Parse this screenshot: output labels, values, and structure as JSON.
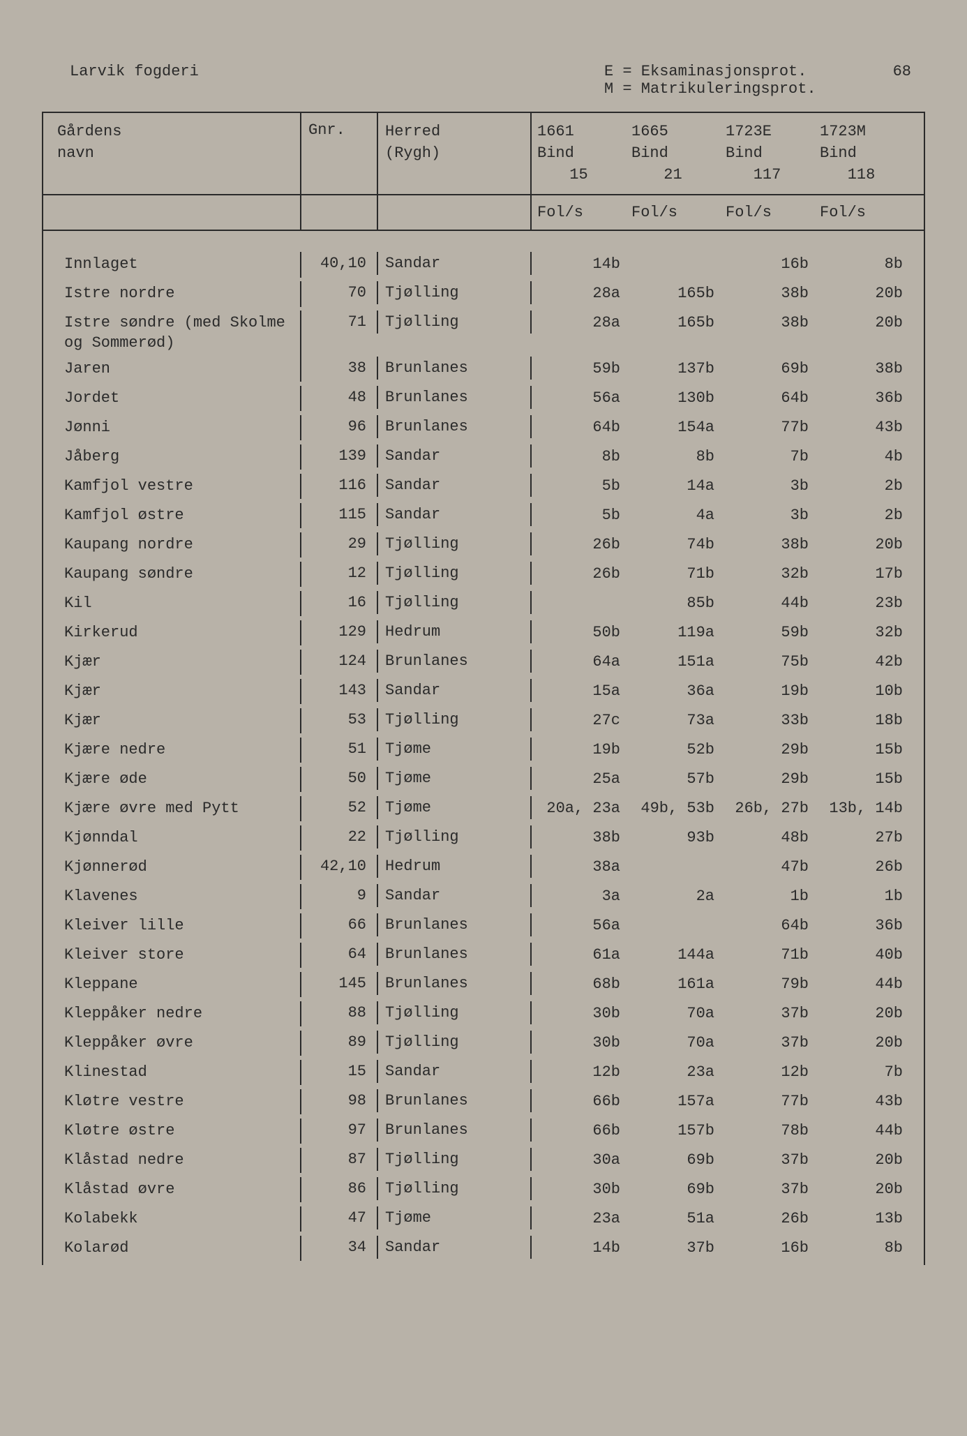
{
  "page_number": "68",
  "district": "Larvik fogderi",
  "legend": {
    "e": "E = Eksaminasjonsprot.",
    "m": "M = Matrikuleringsprot."
  },
  "headers": {
    "name_l1": "Gårdens",
    "name_l2": "navn",
    "gnr": "Gnr.",
    "herred_l1": "Herred",
    "herred_l2": "(Rygh)",
    "y1_l1": "1661",
    "y1_l2": "Bind",
    "y1_l3": "15",
    "y2_l1": "1665",
    "y2_l2": "Bind",
    "y2_l3": "21",
    "y3_l1": "1723E",
    "y3_l2": "Bind",
    "y3_l3": "117",
    "y4_l1": "1723M",
    "y4_l2": "Bind",
    "y4_l3": "118",
    "fols": "Fol/s"
  },
  "rows": [
    {
      "name": "Innlaget",
      "gnr": "40,10",
      "herred": "Sandar",
      "y1": "14b",
      "y2": "",
      "y3": "16b",
      "y4": "8b"
    },
    {
      "name": "Istre nordre",
      "gnr": "70",
      "herred": "Tjølling",
      "y1": "28a",
      "y2": "165b",
      "y3": "38b",
      "y4": "20b"
    },
    {
      "name": "Istre søndre (med Skolme og Sommerød)",
      "gnr": "71",
      "herred": "Tjølling",
      "y1": "28a",
      "y2": "165b",
      "y3": "38b",
      "y4": "20b"
    },
    {
      "name": "Jaren",
      "gnr": "38",
      "herred": "Brunlanes",
      "y1": "59b",
      "y2": "137b",
      "y3": "69b",
      "y4": "38b"
    },
    {
      "name": "Jordet",
      "gnr": "48",
      "herred": "Brunlanes",
      "y1": "56a",
      "y2": "130b",
      "y3": "64b",
      "y4": "36b"
    },
    {
      "name": "Jønni",
      "gnr": "96",
      "herred": "Brunlanes",
      "y1": "64b",
      "y2": "154a",
      "y3": "77b",
      "y4": "43b"
    },
    {
      "name": "Jåberg",
      "gnr": "139",
      "herred": "Sandar",
      "y1": "8b",
      "y2": "8b",
      "y3": "7b",
      "y4": "4b"
    },
    {
      "name": "Kamfjol vestre",
      "gnr": "116",
      "herred": "Sandar",
      "y1": "5b",
      "y2": "14a",
      "y3": "3b",
      "y4": "2b"
    },
    {
      "name": "Kamfjol østre",
      "gnr": "115",
      "herred": "Sandar",
      "y1": "5b",
      "y2": "4a",
      "y3": "3b",
      "y4": "2b"
    },
    {
      "name": "Kaupang nordre",
      "gnr": "29",
      "herred": "Tjølling",
      "y1": "26b",
      "y2": "74b",
      "y3": "38b",
      "y4": "20b"
    },
    {
      "name": "Kaupang søndre",
      "gnr": "12",
      "herred": "Tjølling",
      "y1": "26b",
      "y2": "71b",
      "y3": "32b",
      "y4": "17b"
    },
    {
      "name": "Kil",
      "gnr": "16",
      "herred": "Tjølling",
      "y1": "",
      "y2": "85b",
      "y3": "44b",
      "y4": "23b"
    },
    {
      "name": "Kirkerud",
      "gnr": "129",
      "herred": "Hedrum",
      "y1": "50b",
      "y2": "119a",
      "y3": "59b",
      "y4": "32b"
    },
    {
      "name": "Kjær",
      "gnr": "124",
      "herred": "Brunlanes",
      "y1": "64a",
      "y2": "151a",
      "y3": "75b",
      "y4": "42b"
    },
    {
      "name": "Kjær",
      "gnr": "143",
      "herred": "Sandar",
      "y1": "15a",
      "y2": "36a",
      "y3": "19b",
      "y4": "10b"
    },
    {
      "name": "Kjær",
      "gnr": "53",
      "herred": "Tjølling",
      "y1": "27c",
      "y2": "73a",
      "y3": "33b",
      "y4": "18b"
    },
    {
      "name": "Kjære nedre",
      "gnr": "51",
      "herred": "Tjøme",
      "y1": "19b",
      "y2": "52b",
      "y3": "29b",
      "y4": "15b"
    },
    {
      "name": "Kjære øde",
      "gnr": "50",
      "herred": "Tjøme",
      "y1": "25a",
      "y2": "57b",
      "y3": "29b",
      "y4": "15b"
    },
    {
      "name": "Kjære øvre med Pytt",
      "gnr": "52",
      "herred": "Tjøme",
      "y1": "20a, 23a",
      "y2": "49b, 53b",
      "y3": "26b, 27b",
      "y4": "13b, 14b"
    },
    {
      "name": "Kjønndal",
      "gnr": "22",
      "herred": "Tjølling",
      "y1": "38b",
      "y2": "93b",
      "y3": "48b",
      "y4": "27b"
    },
    {
      "name": "Kjønnerød",
      "gnr": "42,10",
      "herred": "Hedrum",
      "y1": "38a",
      "y2": "",
      "y3": "47b",
      "y4": "26b"
    },
    {
      "name": "Klavenes",
      "gnr": "9",
      "herred": "Sandar",
      "y1": "3a",
      "y2": "2a",
      "y3": "1b",
      "y4": "1b"
    },
    {
      "name": "Kleiver lille",
      "gnr": "66",
      "herred": "Brunlanes",
      "y1": "56a",
      "y2": "",
      "y3": "64b",
      "y4": "36b"
    },
    {
      "name": "Kleiver store",
      "gnr": "64",
      "herred": "Brunlanes",
      "y1": "61a",
      "y2": "144a",
      "y3": "71b",
      "y4": "40b"
    },
    {
      "name": "Kleppane",
      "gnr": "145",
      "herred": "Brunlanes",
      "y1": "68b",
      "y2": "161a",
      "y3": "79b",
      "y4": "44b"
    },
    {
      "name": "Kleppåker nedre",
      "gnr": "88",
      "herred": "Tjølling",
      "y1": "30b",
      "y2": "70a",
      "y3": "37b",
      "y4": "20b"
    },
    {
      "name": "Kleppåker øvre",
      "gnr": "89",
      "herred": "Tjølling",
      "y1": "30b",
      "y2": "70a",
      "y3": "37b",
      "y4": "20b"
    },
    {
      "name": "Klinestad",
      "gnr": "15",
      "herred": "Sandar",
      "y1": "12b",
      "y2": "23a",
      "y3": "12b",
      "y4": "7b"
    },
    {
      "name": "Kløtre vestre",
      "gnr": "98",
      "herred": "Brunlanes",
      "y1": "66b",
      "y2": "157a",
      "y3": "77b",
      "y4": "43b"
    },
    {
      "name": "Kløtre østre",
      "gnr": "97",
      "herred": "Brunlanes",
      "y1": "66b",
      "y2": "157b",
      "y3": "78b",
      "y4": "44b"
    },
    {
      "name": "Klåstad nedre",
      "gnr": "87",
      "herred": "Tjølling",
      "y1": "30a",
      "y2": "69b",
      "y3": "37b",
      "y4": "20b"
    },
    {
      "name": "Klåstad øvre",
      "gnr": "86",
      "herred": "Tjølling",
      "y1": "30b",
      "y2": "69b",
      "y3": "37b",
      "y4": "20b"
    },
    {
      "name": "Kolabekk",
      "gnr": "47",
      "herred": "Tjøme",
      "y1": "23a",
      "y2": "51a",
      "y3": "26b",
      "y4": "13b"
    },
    {
      "name": "Kolarød",
      "gnr": "34",
      "herred": "Sandar",
      "y1": "14b",
      "y2": "37b",
      "y3": "16b",
      "y4": "8b"
    }
  ]
}
